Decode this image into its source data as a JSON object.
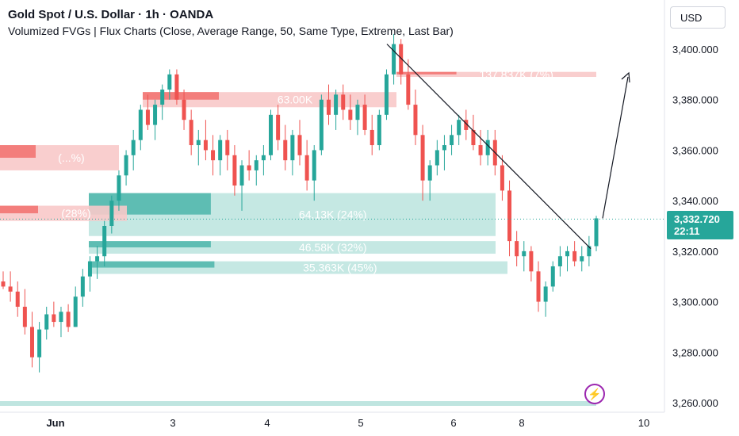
{
  "header": {
    "title": "Gold Spot / U.S. Dollar · 1h · OANDA",
    "indicator": "Volumized FVGs | Flux Charts (Close, Average Range, 50, Same Type, Extreme, Last Bar)"
  },
  "currency_button": "USD",
  "last_price": {
    "value": "3,332.720",
    "countdown": "22:11"
  },
  "colors": {
    "bull": "#26a69a",
    "bear": "#ef5350",
    "bull_zone": "#bfe5e0",
    "bear_zone": "#f8c9c9",
    "accent": "#9c27b0"
  },
  "icons": {
    "replay": "lightning-bolt-icon"
  },
  "chart_data": {
    "type": "candlestick",
    "symbol": "XAUUSD",
    "timeframe": "1h",
    "y_axis": {
      "ticks": [
        3260,
        3280,
        3300,
        3320,
        3340,
        3360,
        3380,
        3400
      ],
      "tick_labels": [
        "3,260.000",
        "3,280.000",
        "3,300.000",
        "3,320.000",
        "3,340.000",
        "3,360.000",
        "3,380.000",
        "3,400.000"
      ],
      "range": [
        3257,
        3417
      ]
    },
    "x_axis": {
      "tick_labels": [
        "Jun",
        "3",
        "4",
        "5",
        "6",
        "8",
        "10"
      ],
      "range": [
        "May 30",
        "Jun 10"
      ]
    },
    "current_price": 3332.72,
    "candles": [
      [
        3308,
        3312,
        3305,
        3306
      ],
      [
        3306,
        3312,
        3300,
        3304
      ],
      [
        3304,
        3308,
        3294,
        3298
      ],
      [
        3298,
        3305,
        3287,
        3290
      ],
      [
        3290,
        3296,
        3274,
        3278
      ],
      [
        3278,
        3292,
        3272,
        3289
      ],
      [
        3289,
        3298,
        3285,
        3295
      ],
      [
        3295,
        3300,
        3290,
        3292
      ],
      [
        3292,
        3298,
        3286,
        3296
      ],
      [
        3296,
        3299,
        3288,
        3290
      ],
      [
        3290,
        3306,
        3290,
        3302
      ],
      [
        3302,
        3313,
        3298,
        3310
      ],
      [
        3310,
        3318,
        3304,
        3316
      ],
      [
        3316,
        3322,
        3309,
        3318
      ],
      [
        3318,
        3332,
        3314,
        3330
      ],
      [
        3330,
        3342,
        3327,
        3340
      ],
      [
        3340,
        3352,
        3336,
        3350
      ],
      [
        3350,
        3360,
        3346,
        3358
      ],
      [
        3358,
        3368,
        3352,
        3364
      ],
      [
        3364,
        3378,
        3360,
        3376
      ],
      [
        3376,
        3382,
        3368,
        3370
      ],
      [
        3370,
        3380,
        3364,
        3378
      ],
      [
        3378,
        3386,
        3372,
        3384
      ],
      [
        3384,
        3392,
        3380,
        3390
      ],
      [
        3390,
        3392,
        3378,
        3380
      ],
      [
        3380,
        3384,
        3368,
        3372
      ],
      [
        3372,
        3376,
        3358,
        3362
      ],
      [
        3362,
        3368,
        3354,
        3364
      ],
      [
        3364,
        3372,
        3356,
        3360
      ],
      [
        3360,
        3366,
        3350,
        3356
      ],
      [
        3356,
        3366,
        3350,
        3364
      ],
      [
        3364,
        3368,
        3352,
        3358
      ],
      [
        3358,
        3362,
        3342,
        3346
      ],
      [
        3346,
        3356,
        3336,
        3354
      ],
      [
        3354,
        3360,
        3348,
        3352
      ],
      [
        3352,
        3358,
        3346,
        3356
      ],
      [
        3356,
        3362,
        3350,
        3358
      ],
      [
        3358,
        3376,
        3356,
        3374
      ],
      [
        3374,
        3378,
        3360,
        3364
      ],
      [
        3364,
        3370,
        3352,
        3356
      ],
      [
        3356,
        3368,
        3350,
        3366
      ],
      [
        3366,
        3372,
        3354,
        3358
      ],
      [
        3358,
        3364,
        3344,
        3348
      ],
      [
        3348,
        3362,
        3340,
        3360
      ],
      [
        3360,
        3382,
        3358,
        3380
      ],
      [
        3380,
        3386,
        3370,
        3374
      ],
      [
        3374,
        3384,
        3368,
        3382
      ],
      [
        3382,
        3386,
        3372,
        3376
      ],
      [
        3376,
        3382,
        3368,
        3372
      ],
      [
        3372,
        3380,
        3366,
        3378
      ],
      [
        3378,
        3382,
        3366,
        3368
      ],
      [
        3368,
        3374,
        3358,
        3362
      ],
      [
        3362,
        3376,
        3360,
        3374
      ],
      [
        3374,
        3392,
        3372,
        3390
      ],
      [
        3390,
        3406,
        3386,
        3402
      ],
      [
        3402,
        3404,
        3386,
        3390
      ],
      [
        3390,
        3396,
        3376,
        3378
      ],
      [
        3378,
        3384,
        3362,
        3366
      ],
      [
        3366,
        3370,
        3340,
        3348
      ],
      [
        3348,
        3356,
        3340,
        3354
      ],
      [
        3354,
        3364,
        3350,
        3360
      ],
      [
        3360,
        3366,
        3352,
        3362
      ],
      [
        3362,
        3370,
        3358,
        3366
      ],
      [
        3366,
        3374,
        3362,
        3372
      ],
      [
        3372,
        3376,
        3364,
        3368
      ],
      [
        3368,
        3374,
        3360,
        3362
      ],
      [
        3362,
        3368,
        3354,
        3358
      ],
      [
        3358,
        3368,
        3354,
        3364
      ],
      [
        3364,
        3368,
        3350,
        3354
      ],
      [
        3354,
        3358,
        3340,
        3344
      ],
      [
        3344,
        3348,
        3318,
        3324
      ],
      [
        3324,
        3328,
        3314,
        3318
      ],
      [
        3318,
        3324,
        3312,
        3320
      ],
      [
        3320,
        3322,
        3308,
        3312
      ],
      [
        3312,
        3316,
        3296,
        3300
      ],
      [
        3300,
        3308,
        3294,
        3306
      ],
      [
        3306,
        3316,
        3304,
        3314
      ],
      [
        3314,
        3322,
        3310,
        3318
      ],
      [
        3318,
        3322,
        3312,
        3320
      ],
      [
        3320,
        3324,
        3314,
        3316
      ],
      [
        3316,
        3322,
        3312,
        3318
      ],
      [
        3318,
        3326,
        3314,
        3322
      ],
      [
        3322,
        3334,
        3320,
        3333
      ]
    ],
    "fvg_zones": [
      {
        "type": "bullish",
        "label": "64.13K (24%)",
        "top": 3343,
        "bottom": 3326
      },
      {
        "type": "bullish",
        "label": "46.58K (32%)",
        "top": 3324,
        "bottom": 3319
      },
      {
        "type": "bullish",
        "label": "35.363K (45%)",
        "top": 3316,
        "bottom": 3311
      },
      {
        "type": "bearish",
        "label": "63.00K",
        "top": 3383,
        "bottom": 3377
      },
      {
        "type": "bearish",
        "label": "137.837K (7%)",
        "top": 3391,
        "bottom": 3389
      },
      {
        "type": "bearish",
        "label": "(28%)",
        "top": 3338,
        "bottom": 3332
      },
      {
        "type": "bearish",
        "label": "(...%)",
        "top": 3362,
        "bottom": 3352
      }
    ],
    "trendlines": [
      {
        "from": [
          "Jun 5",
          3402
        ],
        "to": [
          "Jun 9",
          3321
        ]
      },
      {
        "from": [
          "Jun 9",
          3333
        ],
        "to": [
          "Jun 10",
          3390
        ]
      }
    ],
    "grid": false
  }
}
